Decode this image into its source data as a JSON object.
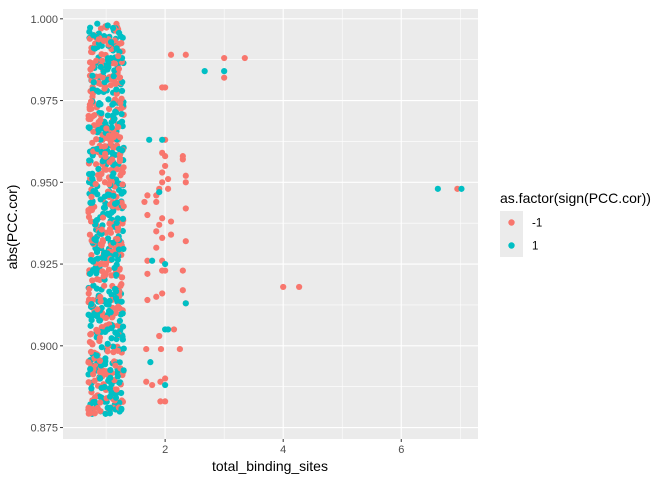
{
  "chart_data": {
    "type": "scatter",
    "title": "",
    "xlabel": "total_binding_sites",
    "ylabel": "abs(PCC.cor)",
    "xlim": [
      0.27,
      7.3
    ],
    "ylim": [
      0.8715,
      1.003
    ],
    "x_ticks": [
      2,
      4,
      6
    ],
    "x_tick_labels": [
      "2",
      "4",
      "6"
    ],
    "y_ticks": [
      0.875,
      0.9,
      0.925,
      0.95,
      0.975,
      1.0
    ],
    "y_tick_labels": [
      "0.875",
      "0.900",
      "0.925",
      "0.950",
      "0.975",
      "1.000"
    ],
    "grid": true,
    "panel_background": "#EBEBEB",
    "gridline_color": "#FFFFFF",
    "legend": {
      "title": "as.factor(sign(PCC.cor))",
      "position": "right",
      "entries": [
        {
          "label": "-1",
          "color": "#F8766D"
        },
        {
          "label": "1",
          "color": "#00BFC4"
        }
      ]
    },
    "cluster_note": "Jittered cloud of ~800 points at total_binding_sites=1 (x jitter 0.7-1.3) and ~80 points at 2, spanning y 0.879-0.999",
    "series": [
      {
        "name": "-1",
        "color": "#F8766D",
        "points": [
          [
            1.92,
            0.883
          ],
          [
            2.0,
            0.883
          ],
          [
            1.78,
            0.888
          ],
          [
            1.68,
            0.889
          ],
          [
            1.92,
            0.889
          ],
          [
            2.0,
            0.89
          ],
          [
            1.68,
            0.899
          ],
          [
            1.93,
            0.899
          ],
          [
            2.25,
            0.899
          ],
          [
            1.9,
            0.903
          ],
          [
            2.15,
            0.905
          ],
          [
            2.35,
            0.913
          ],
          [
            1.7,
            0.914
          ],
          [
            1.85,
            0.915
          ],
          [
            1.95,
            0.916
          ],
          [
            2.3,
            0.917
          ],
          [
            4.0,
            0.918
          ],
          [
            4.27,
            0.918
          ],
          [
            1.7,
            0.922
          ],
          [
            1.95,
            0.923
          ],
          [
            2.0,
            0.923
          ],
          [
            2.3,
            0.923
          ],
          [
            1.7,
            0.926
          ],
          [
            1.95,
            0.926
          ],
          [
            1.85,
            0.93
          ],
          [
            2.35,
            0.932
          ],
          [
            1.95,
            0.933
          ],
          [
            2.1,
            0.934
          ],
          [
            1.85,
            0.935
          ],
          [
            1.9,
            0.937
          ],
          [
            2.1,
            0.938
          ],
          [
            1.95,
            0.939
          ],
          [
            1.7,
            0.94
          ],
          [
            2.35,
            0.942
          ],
          [
            1.65,
            0.944
          ],
          [
            1.85,
            0.944
          ],
          [
            1.7,
            0.946
          ],
          [
            1.85,
            0.946
          ],
          [
            1.9,
            0.948
          ],
          [
            2.05,
            0.948
          ],
          [
            1.95,
            0.95
          ],
          [
            2.05,
            0.951
          ],
          [
            2.35,
            0.95
          ],
          [
            2.35,
            0.952
          ],
          [
            1.95,
            0.953
          ],
          [
            2.0,
            0.955
          ],
          [
            2.3,
            0.957
          ],
          [
            2.0,
            0.958
          ],
          [
            1.95,
            0.959
          ],
          [
            2.3,
            0.958
          ],
          [
            2.0,
            0.963
          ],
          [
            1.95,
            0.979
          ],
          [
            2.0,
            0.979
          ],
          [
            3.0,
            0.982
          ],
          [
            3.0,
            0.988
          ],
          [
            3.35,
            0.988
          ],
          [
            2.1,
            0.989
          ],
          [
            2.35,
            0.989
          ],
          [
            6.95,
            0.948
          ]
        ]
      },
      {
        "name": "1",
        "color": "#00BFC4",
        "points": [
          [
            2.0,
            0.888
          ],
          [
            1.75,
            0.895
          ],
          [
            2.35,
            0.913
          ],
          [
            2.0,
            0.905
          ],
          [
            2.05,
            0.905
          ],
          [
            2.0,
            0.925
          ],
          [
            1.78,
            0.926
          ],
          [
            1.9,
            0.947
          ],
          [
            1.73,
            0.963
          ],
          [
            1.95,
            0.963
          ],
          [
            2.67,
            0.984
          ],
          [
            3.0,
            0.984
          ],
          [
            6.62,
            0.948
          ],
          [
            7.02,
            0.948
          ]
        ]
      }
    ]
  }
}
